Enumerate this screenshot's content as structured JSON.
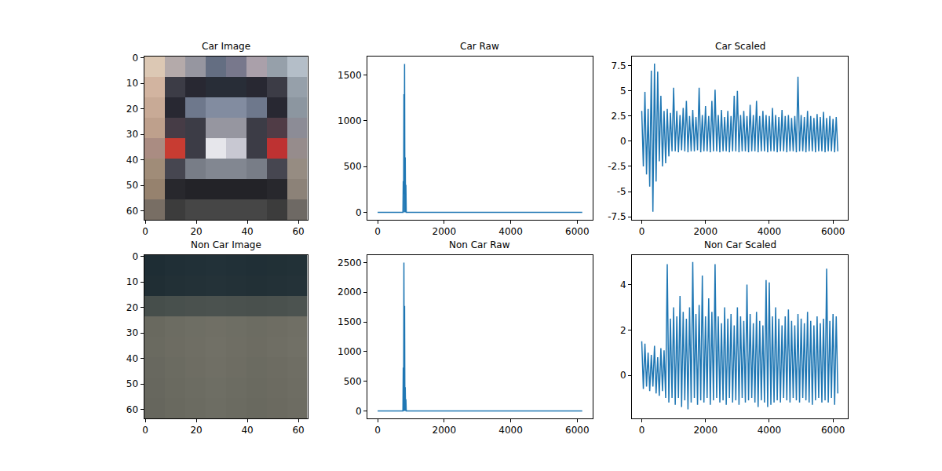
{
  "chart_data": [
    {
      "type": "image",
      "title": "Car Image",
      "xlim": [
        -0.5,
        63.5
      ],
      "xticks": [
        0,
        20,
        40,
        60
      ],
      "ylim": [
        63.5,
        -0.5
      ],
      "yticks": [
        0,
        10,
        20,
        30,
        40,
        50,
        60
      ],
      "cells": [
        [
          [
            220,
            200,
            180
          ],
          [
            180,
            170,
            170
          ],
          [
            150,
            150,
            160
          ],
          [
            100,
            110,
            130
          ],
          [
            120,
            120,
            140
          ],
          [
            170,
            160,
            170
          ],
          [
            150,
            160,
            170
          ],
          [
            180,
            190,
            200
          ]
        ],
        [
          [
            210,
            180,
            160
          ],
          [
            60,
            60,
            70
          ],
          [
            40,
            40,
            50
          ],
          [
            40,
            45,
            55
          ],
          [
            40,
            45,
            55
          ],
          [
            40,
            40,
            50
          ],
          [
            60,
            60,
            70
          ],
          [
            150,
            160,
            170
          ]
        ],
        [
          [
            200,
            170,
            150
          ],
          [
            40,
            40,
            50
          ],
          [
            110,
            120,
            140
          ],
          [
            130,
            140,
            160
          ],
          [
            130,
            140,
            160
          ],
          [
            110,
            120,
            140
          ],
          [
            40,
            40,
            50
          ],
          [
            140,
            150,
            160
          ]
        ],
        [
          [
            190,
            160,
            140
          ],
          [
            70,
            60,
            70
          ],
          [
            60,
            60,
            70
          ],
          [
            150,
            150,
            160
          ],
          [
            150,
            150,
            160
          ],
          [
            60,
            60,
            70
          ],
          [
            80,
            60,
            70
          ],
          [
            140,
            140,
            150
          ]
        ],
        [
          [
            170,
            140,
            130
          ],
          [
            200,
            60,
            50
          ],
          [
            60,
            60,
            70
          ],
          [
            230,
            230,
            235
          ],
          [
            200,
            200,
            210
          ],
          [
            60,
            60,
            70
          ],
          [
            190,
            50,
            50
          ],
          [
            150,
            140,
            140
          ]
        ],
        [
          [
            160,
            140,
            120
          ],
          [
            70,
            70,
            80
          ],
          [
            120,
            125,
            135
          ],
          [
            130,
            135,
            145
          ],
          [
            130,
            135,
            145
          ],
          [
            120,
            125,
            135
          ],
          [
            70,
            70,
            80
          ],
          [
            150,
            140,
            130
          ]
        ],
        [
          [
            150,
            130,
            110
          ],
          [
            40,
            40,
            45
          ],
          [
            35,
            35,
            40
          ],
          [
            35,
            35,
            40
          ],
          [
            35,
            35,
            40
          ],
          [
            35,
            35,
            40
          ],
          [
            40,
            40,
            45
          ],
          [
            140,
            130,
            120
          ]
        ],
        [
          [
            120,
            110,
            100
          ],
          [
            60,
            60,
            60
          ],
          [
            70,
            70,
            70
          ],
          [
            70,
            70,
            70
          ],
          [
            70,
            70,
            70
          ],
          [
            70,
            70,
            70
          ],
          [
            60,
            60,
            60
          ],
          [
            110,
            105,
            100
          ]
        ]
      ]
    },
    {
      "type": "line",
      "title": "Car Raw",
      "color": "#1f77b4",
      "xlim": [
        -308,
        6463
      ],
      "xticks": [
        0,
        2000,
        4000,
        6000
      ],
      "ylim": [
        -81,
        1701
      ],
      "yticks": [
        0,
        500,
        1000,
        1500
      ],
      "x": [
        0,
        700,
        760,
        770,
        780,
        790,
        800,
        810,
        820,
        830,
        840,
        850,
        860,
        870,
        6150
      ],
      "values": [
        0,
        0,
        0,
        340,
        0,
        1290,
        200,
        1620,
        0,
        600,
        0,
        300,
        0,
        0,
        0
      ]
    },
    {
      "type": "line",
      "title": "Car Scaled",
      "color": "#1f77b4",
      "xlim": [
        -308,
        6463
      ],
      "xticks": [
        0,
        2000,
        4000,
        6000
      ],
      "ylim": [
        -7.8,
        8.4
      ],
      "yticks": [
        -7.5,
        -5.0,
        -2.5,
        0.0,
        2.5,
        5.0,
        7.5
      ],
      "x": [
        0,
        50,
        100,
        150,
        200,
        250,
        300,
        350,
        400,
        450,
        500,
        550,
        600,
        650,
        700,
        750,
        800,
        850,
        900,
        950,
        1000,
        1050,
        1100,
        1150,
        1200,
        1250,
        1300,
        1350,
        1400,
        1450,
        1500,
        1550,
        1600,
        1650,
        1700,
        1750,
        1800,
        1850,
        1900,
        1950,
        2000,
        2050,
        2100,
        2150,
        2200,
        2250,
        2300,
        2350,
        2400,
        2450,
        2500,
        2550,
        2600,
        2650,
        2700,
        2750,
        2800,
        2850,
        2900,
        2950,
        3000,
        3050,
        3100,
        3150,
        3200,
        3250,
        3300,
        3350,
        3400,
        3450,
        3500,
        3550,
        3600,
        3650,
        3700,
        3750,
        3800,
        3850,
        3900,
        3950,
        4000,
        4050,
        4100,
        4150,
        4200,
        4250,
        4300,
        4350,
        4400,
        4450,
        4500,
        4550,
        4600,
        4650,
        4700,
        4750,
        4800,
        4850,
        4900,
        4950,
        5000,
        5050,
        5100,
        5150,
        5200,
        5250,
        5300,
        5350,
        5400,
        5450,
        5500,
        5550,
        5600,
        5650,
        5700,
        5750,
        5800,
        5850,
        5900,
        5950,
        6000,
        6050,
        6100,
        6150
      ],
      "values": [
        3.0,
        -2.5,
        4.9,
        -3.3,
        3.2,
        -4.5,
        7.0,
        -7.0,
        7.7,
        -4.0,
        6.9,
        -2.0,
        4.5,
        -2.5,
        3.0,
        -2.2,
        3.2,
        -1.5,
        2.8,
        -1.0,
        5.3,
        -1.0,
        3.0,
        -1.1,
        2.6,
        -0.9,
        3.3,
        -1.0,
        4.0,
        -1.1,
        2.5,
        -1.0,
        3.1,
        -1.0,
        2.4,
        -0.9,
        5.3,
        -1.1,
        2.6,
        -1.0,
        3.5,
        -1.0,
        2.5,
        -1.1,
        4.0,
        -1.0,
        5.1,
        -1.0,
        2.6,
        -1.1,
        3.1,
        -1.0,
        2.4,
        -1.0,
        3.0,
        -1.1,
        2.5,
        -1.0,
        4.5,
        -1.0,
        5.0,
        -1.1,
        2.6,
        -1.0,
        3.0,
        -1.0,
        2.5,
        -1.1,
        3.6,
        -1.0,
        2.6,
        -1.0,
        4.0,
        -1.1,
        2.5,
        -1.0,
        3.0,
        -1.0,
        2.6,
        -1.1,
        2.5,
        -1.0,
        3.3,
        -1.0,
        2.6,
        -1.1,
        2.4,
        -1.0,
        3.1,
        -1.0,
        2.5,
        -1.1,
        2.6,
        -1.0,
        2.3,
        -1.0,
        2.5,
        -1.1,
        6.4,
        -1.0,
        2.6,
        -1.0,
        2.4,
        -1.1,
        3.0,
        -1.0,
        2.5,
        -1.0,
        2.3,
        -1.1,
        2.7,
        -1.0,
        2.4,
        -1.0,
        2.9,
        -1.1,
        2.3,
        -1.0,
        2.5,
        -1.0,
        2.2,
        -1.1,
        2.4,
        -1.0
      ]
    },
    {
      "type": "image",
      "title": "Non Car Image",
      "xlim": [
        -0.5,
        63.5
      ],
      "xticks": [
        0,
        20,
        40,
        60
      ],
      "ylim": [
        63.5,
        -0.5
      ],
      "yticks": [
        0,
        10,
        20,
        30,
        40,
        50,
        60
      ],
      "cells": [
        [
          [
            30,
            45,
            52
          ],
          [
            32,
            47,
            54
          ],
          [
            33,
            48,
            55
          ],
          [
            34,
            49,
            56
          ],
          [
            33,
            48,
            55
          ],
          [
            32,
            47,
            54
          ],
          [
            33,
            48,
            54
          ],
          [
            34,
            49,
            55
          ]
        ],
        [
          [
            32,
            46,
            52
          ],
          [
            34,
            48,
            54
          ],
          [
            35,
            49,
            55
          ],
          [
            36,
            50,
            56
          ],
          [
            35,
            49,
            55
          ],
          [
            34,
            48,
            54
          ],
          [
            35,
            49,
            55
          ],
          [
            36,
            50,
            56
          ]
        ],
        [
          [
            70,
            78,
            75
          ],
          [
            72,
            80,
            77
          ],
          [
            74,
            81,
            78
          ],
          [
            75,
            82,
            79
          ],
          [
            74,
            81,
            78
          ],
          [
            73,
            80,
            77
          ],
          [
            74,
            81,
            78
          ],
          [
            76,
            83,
            80
          ]
        ],
        [
          [
            105,
            105,
            95
          ],
          [
            108,
            108,
            98
          ],
          [
            110,
            110,
            100
          ],
          [
            112,
            111,
            101
          ],
          [
            110,
            110,
            100
          ],
          [
            108,
            108,
            98
          ],
          [
            110,
            109,
            99
          ],
          [
            112,
            111,
            101
          ]
        ],
        [
          [
            106,
            106,
            96
          ],
          [
            109,
            108,
            98
          ],
          [
            111,
            110,
            100
          ],
          [
            113,
            112,
            102
          ],
          [
            111,
            110,
            100
          ],
          [
            109,
            108,
            98
          ],
          [
            111,
            110,
            100
          ],
          [
            113,
            112,
            102
          ]
        ],
        [
          [
            104,
            104,
            95
          ],
          [
            107,
            107,
            97
          ],
          [
            110,
            109,
            99
          ],
          [
            112,
            111,
            101
          ],
          [
            110,
            109,
            99
          ],
          [
            107,
            107,
            97
          ],
          [
            109,
            108,
            98
          ],
          [
            111,
            110,
            100
          ]
        ],
        [
          [
            103,
            103,
            94
          ],
          [
            106,
            106,
            96
          ],
          [
            108,
            108,
            98
          ],
          [
            110,
            110,
            100
          ],
          [
            108,
            108,
            98
          ],
          [
            106,
            106,
            96
          ],
          [
            108,
            107,
            97
          ],
          [
            110,
            109,
            99
          ]
        ],
        [
          [
            102,
            102,
            93
          ],
          [
            105,
            105,
            95
          ],
          [
            107,
            107,
            97
          ],
          [
            109,
            109,
            99
          ],
          [
            107,
            107,
            97
          ],
          [
            105,
            105,
            95
          ],
          [
            107,
            106,
            96
          ],
          [
            109,
            108,
            98
          ]
        ]
      ]
    },
    {
      "type": "line",
      "title": "Non Car Raw",
      "color": "#1f77b4",
      "xlim": [
        -308,
        6463
      ],
      "xticks": [
        0,
        2000,
        4000,
        6000
      ],
      "ylim": [
        -125,
        2625
      ],
      "yticks": [
        0,
        500,
        1000,
        1500,
        2000,
        2500
      ],
      "x": [
        0,
        700,
        760,
        770,
        780,
        790,
        800,
        810,
        820,
        830,
        840,
        850,
        860,
        870,
        6150
      ],
      "values": [
        0,
        0,
        0,
        730,
        0,
        2500,
        0,
        1770,
        0,
        400,
        0,
        200,
        0,
        0,
        0
      ]
    },
    {
      "type": "line",
      "title": "Non Car Scaled",
      "color": "#1f77b4",
      "xlim": [
        -308,
        6463
      ],
      "xticks": [
        0,
        2000,
        4000,
        6000
      ],
      "ylim": [
        -1.9,
        5.3
      ],
      "yticks": [
        0,
        2,
        4
      ],
      "x": [
        0,
        50,
        100,
        150,
        200,
        250,
        300,
        350,
        400,
        450,
        500,
        550,
        600,
        650,
        700,
        750,
        800,
        850,
        900,
        950,
        1000,
        1050,
        1100,
        1150,
        1200,
        1250,
        1300,
        1350,
        1400,
        1450,
        1500,
        1550,
        1600,
        1650,
        1700,
        1750,
        1800,
        1850,
        1900,
        1950,
        2000,
        2050,
        2100,
        2150,
        2200,
        2250,
        2300,
        2350,
        2400,
        2450,
        2500,
        2550,
        2600,
        2650,
        2700,
        2750,
        2800,
        2850,
        2900,
        2950,
        3000,
        3050,
        3100,
        3150,
        3200,
        3250,
        3300,
        3350,
        3400,
        3450,
        3500,
        3550,
        3600,
        3650,
        3700,
        3750,
        3800,
        3850,
        3900,
        3950,
        4000,
        4050,
        4100,
        4150,
        4200,
        4250,
        4300,
        4350,
        4400,
        4450,
        4500,
        4550,
        4600,
        4650,
        4700,
        4750,
        4800,
        4850,
        4900,
        4950,
        5000,
        5050,
        5100,
        5150,
        5200,
        5250,
        5300,
        5350,
        5400,
        5450,
        5500,
        5550,
        5600,
        5650,
        5700,
        5750,
        5800,
        5850,
        5900,
        5950,
        6000,
        6050,
        6100,
        6150
      ],
      "values": [
        1.5,
        -0.6,
        1.4,
        -0.5,
        1.0,
        -0.7,
        0.9,
        -0.5,
        1.3,
        -0.8,
        0.8,
        -0.9,
        1.2,
        -0.7,
        1.1,
        -1.0,
        4.9,
        -1.2,
        2.5,
        -1.0,
        3.0,
        -1.3,
        2.6,
        -1.0,
        3.5,
        -1.4,
        2.8,
        -1.1,
        2.5,
        -1.5,
        3.0,
        -1.2,
        5.0,
        -1.0,
        2.7,
        -1.3,
        3.1,
        -1.1,
        4.4,
        -1.2,
        2.6,
        -1.0,
        3.4,
        -1.3,
        2.8,
        -1.1,
        4.9,
        -1.0,
        2.6,
        -1.2,
        2.3,
        -1.1,
        3.0,
        -1.3,
        2.5,
        -1.0,
        2.7,
        -1.2,
        2.2,
        -1.1,
        3.0,
        -1.3,
        2.6,
        -1.0,
        2.4,
        -1.2,
        4.0,
        -1.1,
        2.7,
        -1.0,
        2.3,
        -1.2,
        2.8,
        -1.4,
        2.4,
        -1.1,
        2.2,
        -1.2,
        4.2,
        -1.4,
        4.1,
        -1.3,
        2.6,
        -1.2,
        3.0,
        -1.1,
        2.5,
        -1.2,
        2.2,
        -1.0,
        2.6,
        -1.1,
        2.9,
        -1.2,
        2.4,
        -1.0,
        2.2,
        -1.1,
        2.7,
        -1.2,
        2.5,
        -1.0,
        2.3,
        -1.1,
        2.8,
        -1.2,
        2.4,
        -1.3,
        2.2,
        -1.1,
        2.6,
        -1.0,
        2.3,
        -1.2,
        2.5,
        -1.1,
        4.7,
        -1.2,
        2.4,
        -1.0,
        2.7,
        -1.3,
        2.6,
        -0.8
      ]
    }
  ]
}
